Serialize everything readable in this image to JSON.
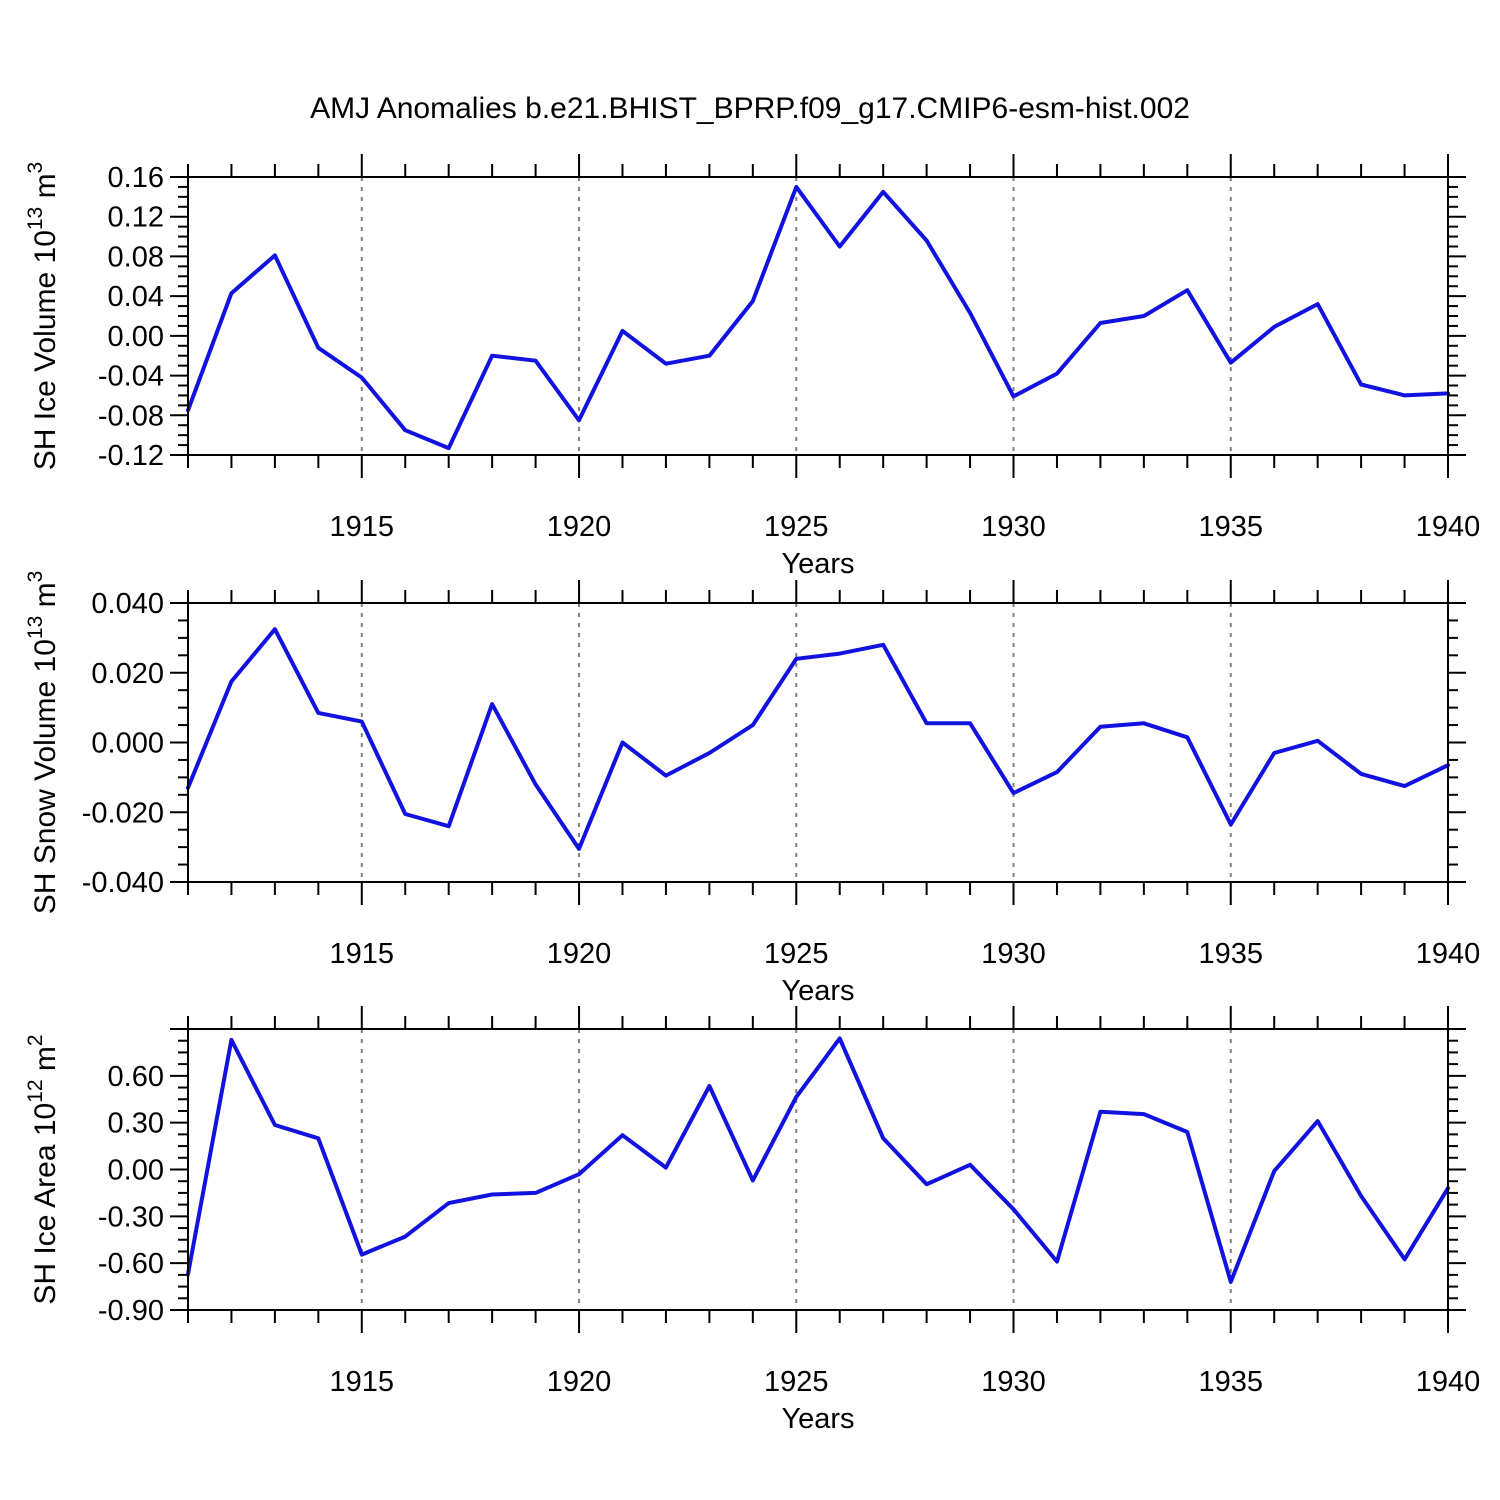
{
  "title": "AMJ Anomalies b.e21.BHIST_BPRP.f09_g17.CMIP6-esm-hist.002",
  "colors": {
    "line": "#1212e0",
    "grid": "#808080",
    "axis": "#000000",
    "text": "#000000",
    "background": "#ffffff"
  },
  "chart_data": {
    "type": "line",
    "title": "AMJ Anomalies b.e21.BHIST_BPRP.f09_g17.CMIP6-esm-hist.002",
    "xlabel": "Years",
    "x_range": [
      1911,
      1940
    ],
    "x_major_ticks": [
      1915,
      1920,
      1925,
      1930,
      1935,
      1940
    ],
    "x_tick_labels": [
      "1915",
      "1920",
      "1925",
      "1930",
      "1935",
      "1940"
    ],
    "x_minor_step": 1,
    "grid_x": [
      1915,
      1920,
      1925,
      1930,
      1935
    ],
    "grid_style": "dashed",
    "legend": "none",
    "x": [
      1911,
      1912,
      1913,
      1914,
      1915,
      1916,
      1917,
      1918,
      1919,
      1920,
      1921,
      1922,
      1923,
      1924,
      1925,
      1926,
      1927,
      1928,
      1929,
      1930,
      1931,
      1932,
      1933,
      1934,
      1935,
      1936,
      1937,
      1938,
      1939,
      1940
    ],
    "panels": [
      {
        "name": "sh-ice-volume",
        "ylabel": "SH Ice Volume 10^13 m^3",
        "ylabel_parts": [
          {
            "t": "SH Ice Volume 10"
          },
          {
            "t": "13",
            "sup": true
          },
          {
            "t": " m"
          },
          {
            "t": "3",
            "sup": true
          }
        ],
        "y_range": [
          -0.12,
          0.16
        ],
        "y_major_ticks": [
          0.16,
          0.12,
          0.08,
          0.04,
          0.0,
          -0.04,
          -0.08,
          -0.12
        ],
        "y_tick_labels": [
          "0.16",
          "0.12",
          "0.08",
          "0.04",
          "0.00",
          "-0.04",
          "-0.08",
          "-0.12"
        ],
        "y_minor_step": 0.01,
        "values": [
          -0.075,
          0.043,
          0.081,
          -0.012,
          -0.042,
          -0.095,
          -0.113,
          -0.02,
          -0.025,
          -0.085,
          0.005,
          -0.028,
          -0.02,
          0.035,
          0.15,
          0.09,
          0.145,
          0.096,
          0.023,
          -0.061,
          -0.038,
          0.013,
          0.02,
          0.046,
          -0.027,
          0.009,
          0.032,
          -0.049,
          -0.06,
          -0.058
        ]
      },
      {
        "name": "sh-snow-volume",
        "ylabel": "SH Snow Volume 10^13 m^3",
        "ylabel_parts": [
          {
            "t": "SH Snow Volume 10"
          },
          {
            "t": "13",
            "sup": true
          },
          {
            "t": " m"
          },
          {
            "t": "3",
            "sup": true
          }
        ],
        "y_range": [
          -0.04,
          0.04
        ],
        "y_major_ticks": [
          0.04,
          0.02,
          0.0,
          -0.02,
          -0.04
        ],
        "y_tick_labels": [
          "0.040",
          "0.020",
          "0.000",
          "-0.020",
          "-0.040"
        ],
        "y_minor_step": 0.005,
        "values": [
          -0.013,
          0.0175,
          0.0325,
          0.0085,
          0.006,
          -0.0205,
          -0.024,
          0.011,
          -0.012,
          -0.0305,
          0.0,
          -0.0095,
          -0.003,
          0.005,
          0.024,
          0.0255,
          0.028,
          0.0055,
          0.0055,
          -0.0145,
          -0.0085,
          0.0045,
          0.0055,
          0.0015,
          -0.0235,
          -0.003,
          0.0005,
          -0.009,
          -0.0125,
          -0.0065
        ]
      },
      {
        "name": "sh-ice-area",
        "ylabel": "SH Ice Area 10^12 m^2",
        "ylabel_parts": [
          {
            "t": "SH Ice Area 10"
          },
          {
            "t": "12",
            "sup": true
          },
          {
            "t": " m"
          },
          {
            "t": "2",
            "sup": true
          }
        ],
        "y_range": [
          -0.9,
          0.9
        ],
        "y_major_ticks": [
          0.9,
          0.6,
          0.3,
          0.0,
          -0.3,
          -0.6,
          -0.9
        ],
        "y_tick_labels": [
          "",
          "0.60",
          "0.30",
          "0.00",
          "-0.30",
          "-0.60",
          "-0.90"
        ],
        "y_minor_step": 0.075,
        "values": [
          -0.67,
          0.83,
          0.285,
          0.2,
          -0.545,
          -0.43,
          -0.215,
          -0.16,
          -0.15,
          -0.03,
          0.22,
          0.012,
          0.535,
          -0.07,
          0.465,
          0.84,
          0.2,
          -0.095,
          0.03,
          -0.255,
          -0.59,
          0.37,
          0.355,
          0.24,
          -0.72,
          -0.01,
          0.31,
          -0.17,
          -0.575,
          -0.12
        ]
      }
    ]
  }
}
